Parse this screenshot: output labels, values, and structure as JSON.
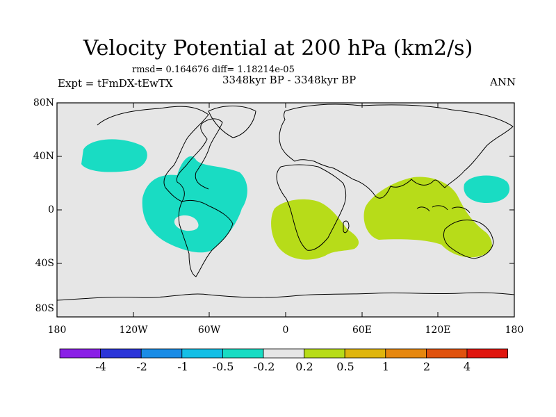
{
  "title": "Velocity Potential at 200 hPa (km2/s)",
  "stats": "rmsd= 0.164676 diff= 1.18214e-05",
  "left_label": "Expt = tFmDX-tEwTX",
  "center_label": "3348kyr BP - 3348kyr BP",
  "right_label": "ANN",
  "y_ticks": [
    "80N",
    "40N",
    "0",
    "40S",
    "80S"
  ],
  "x_ticks": [
    "180",
    "120W",
    "60W",
    "0",
    "60E",
    "120E",
    "180"
  ],
  "colorbar": {
    "labels": [
      "-4",
      "-2",
      "-1",
      "-0.5",
      "-0.2",
      "0.2",
      "0.5",
      "1",
      "2",
      "4"
    ],
    "colors": [
      "#8a1fe6",
      "#2b35d8",
      "#1a8ce6",
      "#14bfe6",
      "#19dcc3",
      "#e6e6e6",
      "#b7dc19",
      "#dfb50d",
      "#e6870f",
      "#e0520e",
      "#e0160f"
    ]
  },
  "colors": {
    "background": "#e6e6e6",
    "negative": "#19dcc3",
    "positive": "#b7dc19"
  }
}
